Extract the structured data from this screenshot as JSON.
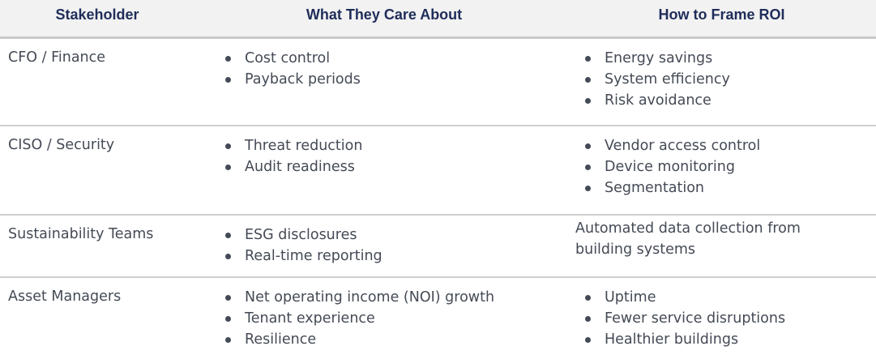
{
  "headers": [
    "Stakeholder",
    "What They Care About",
    "How to Frame ROI"
  ],
  "rows": [
    {
      "stakeholder": "CFO / Finance",
      "cares": [
        "Cost control",
        "Payback periods"
      ],
      "roi": [
        "Energy savings",
        "System efficiency",
        "Risk avoidance"
      ]
    },
    {
      "stakeholder": "CISO / Security",
      "cares": [
        "Threat reduction",
        "Audit readiness"
      ],
      "roi": [
        "Vendor access control",
        "Device monitoring",
        "Segmentation"
      ]
    },
    {
      "stakeholder": "Sustainability Teams",
      "cares": [
        "ESG disclosures",
        "Real-time reporting"
      ],
      "roi_text": "Automated data collection from building systems"
    },
    {
      "stakeholder": "Asset Managers",
      "cares": [
        "Net operating income (NOI) growth",
        "Tenant experience",
        "Resilience"
      ],
      "roi": [
        "Uptime",
        "Fewer service disruptions",
        "Healthier buildings"
      ]
    }
  ],
  "colors": {
    "header_text": "#1f2d5a",
    "header_bg": "#f2f2f2",
    "body_text": "#444a55",
    "rule": "#cfcfcf"
  }
}
